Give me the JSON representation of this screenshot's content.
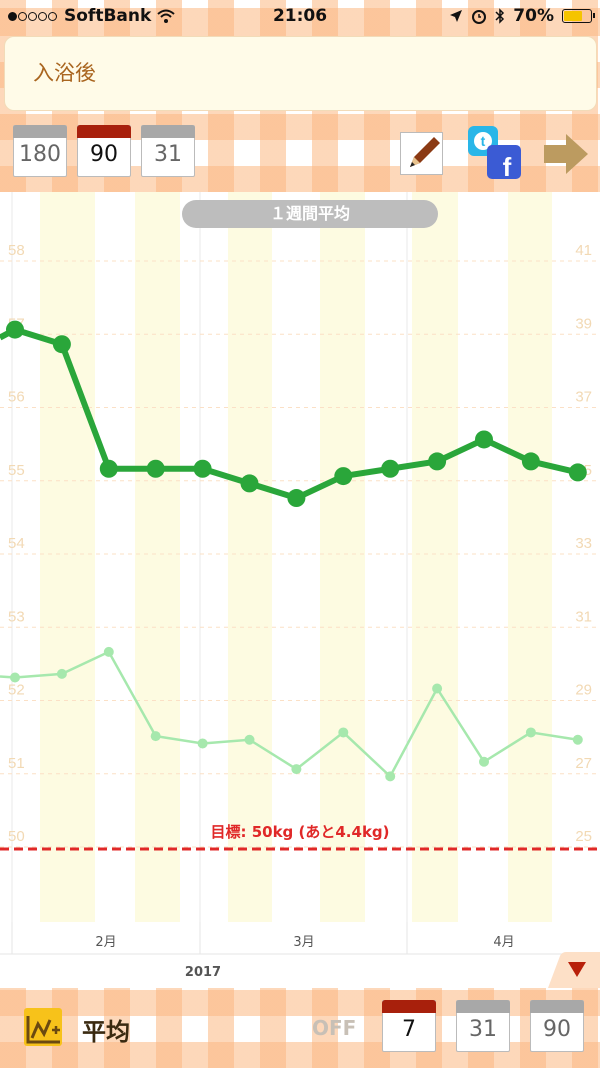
{
  "status_bar": {
    "carrier": "SoftBank",
    "time": "21:06",
    "battery": "70%",
    "battery_level": 0.7
  },
  "memo": {
    "text": "入浴後"
  },
  "period_buttons_top": [
    {
      "label": "180",
      "selected": false
    },
    {
      "label": "90",
      "selected": true
    },
    {
      "label": "31",
      "selected": false
    }
  ],
  "header_icons": [
    "pencil-icon",
    "twitter-icon",
    "facebook-icon",
    "next-arrow-icon"
  ],
  "avg_label": "１週間平均",
  "chart_data": {
    "type": "line",
    "left_axis_ticks": [
      "58",
      "57",
      "56",
      "55",
      "54",
      "53",
      "52",
      "51",
      "50"
    ],
    "right_axis_ticks": [
      "41",
      "39",
      "37",
      "35",
      "33",
      "31",
      "29",
      "27",
      "25"
    ],
    "ylim_left": [
      50,
      58
    ],
    "ylim_right": [
      25,
      41
    ],
    "series": [
      {
        "axis": "left",
        "color": "#2aa63a",
        "x": [
          0,
          1,
          2,
          3,
          4,
          5,
          6,
          7,
          8,
          9,
          10,
          11,
          12
        ],
        "values": [
          56.9,
          56.7,
          55.0,
          55.0,
          55.0,
          54.8,
          54.6,
          54.9,
          55.0,
          55.1,
          55.4,
          55.1,
          54.95
        ]
      },
      {
        "axis": "right",
        "color": "#a6e8ad",
        "x": [
          0,
          1,
          2,
          3,
          4,
          5,
          6,
          7,
          8,
          9,
          10,
          11,
          12
        ],
        "values": [
          29.3,
          29.4,
          30.0,
          27.7,
          27.5,
          27.6,
          26.8,
          27.8,
          26.6,
          29.0,
          27.0,
          27.8,
          27.6
        ]
      }
    ],
    "goal_line": {
      "value": 50,
      "label": "目標: 50kg (あと4.4kg)",
      "color": "#e02828"
    },
    "month_labels": [
      "2月",
      "3月",
      "4月"
    ],
    "year_label": "2017",
    "grid": true
  },
  "bottom_bar": {
    "mode_label": "平均",
    "off_label": "OFF",
    "periods": [
      {
        "label": "7",
        "selected": true
      },
      {
        "label": "31",
        "selected": false
      },
      {
        "label": "90",
        "selected": false
      }
    ]
  },
  "colors": {
    "gingham": "#fbb782",
    "bar_orange": "#f9a36a",
    "green_strong": "#2aa63a",
    "green_light": "#a6e8ad",
    "goal_red": "#e02828",
    "dropdown_red": "#b8200a"
  }
}
